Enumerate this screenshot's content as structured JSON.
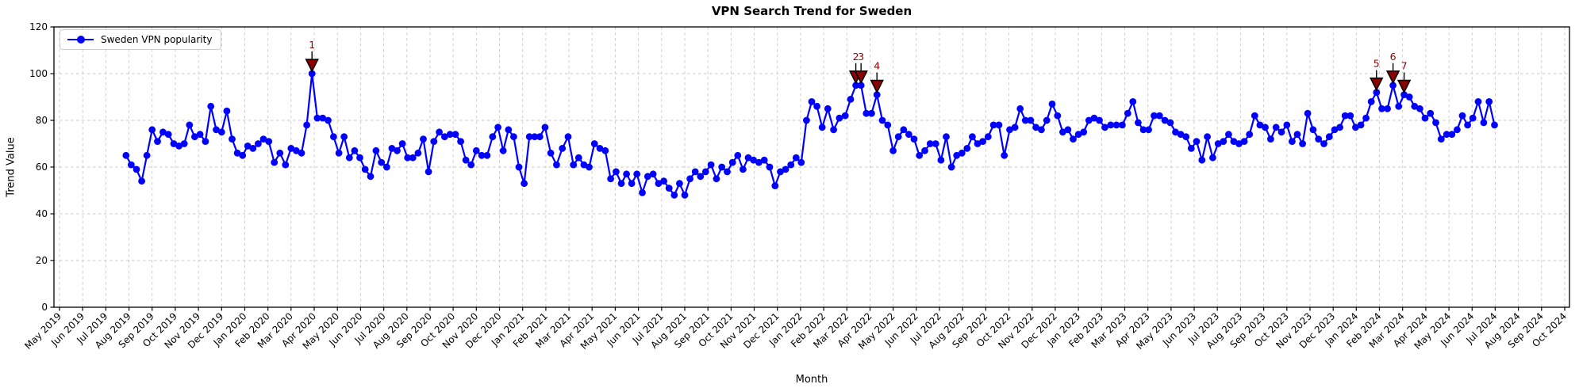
{
  "chart_data": {
    "type": "line",
    "title": "VPN Search Trend for Sweden",
    "xlabel": "Month",
    "ylabel": "Trend Value",
    "ylim": [
      0,
      120
    ],
    "yticks": [
      0,
      20,
      40,
      60,
      80,
      100,
      120
    ],
    "grid": true,
    "legend_position": "upper left",
    "line_color": "#0000ff",
    "grid_color": "#c9c9c9",
    "annotation_color": "#8b0000",
    "x_tick_labels": [
      "May 2019",
      "Jun 2019",
      "Jul 2019",
      "Aug 2019",
      "Sep 2019",
      "Oct 2019",
      "Nov 2019",
      "Dec 2019",
      "Jan 2020",
      "Feb 2020",
      "Mar 2020",
      "Apr 2020",
      "May 2020",
      "Jun 2020",
      "Jul 2020",
      "Aug 2020",
      "Sep 2020",
      "Oct 2020",
      "Nov 2020",
      "Dec 2020",
      "Jan 2021",
      "Feb 2021",
      "Mar 2021",
      "Apr 2021",
      "May 2021",
      "Jun 2021",
      "Jul 2021",
      "Aug 2021",
      "Sep 2021",
      "Oct 2021",
      "Nov 2021",
      "Dec 2021",
      "Jan 2022",
      "Feb 2022",
      "Mar 2022",
      "Apr 2022",
      "May 2022",
      "Jun 2022",
      "Jul 2022",
      "Aug 2022",
      "Sep 2022",
      "Oct 2022",
      "Nov 2022",
      "Dec 2022",
      "Jan 2023",
      "Feb 2023",
      "Mar 2023",
      "Apr 2023",
      "May 2023",
      "Jun 2023",
      "Jul 2023",
      "Aug 2023",
      "Sep 2023",
      "Oct 2023",
      "Nov 2023",
      "Dec 2023",
      "Jan 2024",
      "Feb 2024",
      "Mar 2024",
      "Apr 2024",
      "May 2024",
      "Jun 2024",
      "Jul 2024",
      "Aug 2024",
      "Sep 2024",
      "Oct 2024"
    ],
    "series": [
      {
        "name": "Sweden VPN popularity",
        "color": "#0000ff",
        "start_date": "2019-07-28",
        "interval_days": 7,
        "values": [
          65,
          61,
          59,
          54,
          65,
          76,
          71,
          75,
          74,
          70,
          69,
          70,
          78,
          73,
          74,
          71,
          86,
          76,
          75,
          84,
          72,
          66,
          65,
          69,
          68,
          70,
          72,
          71,
          62,
          66,
          61,
          68,
          67,
          66,
          78,
          100,
          81,
          81,
          80,
          73,
          66,
          73,
          64,
          67,
          64,
          59,
          56,
          67,
          62,
          60,
          68,
          67,
          70,
          64,
          64,
          66,
          72,
          58,
          71,
          75,
          73,
          74,
          74,
          71,
          63,
          61,
          67,
          65,
          65,
          73,
          77,
          67,
          76,
          73,
          60,
          53,
          73,
          73,
          73,
          77,
          66,
          61,
          68,
          73,
          61,
          64,
          61,
          60,
          70,
          68,
          67,
          55,
          58,
          53,
          57,
          53,
          57,
          49,
          56,
          57,
          53,
          54,
          51,
          48,
          53,
          48,
          55,
          58,
          56,
          58,
          61,
          55,
          60,
          58,
          62,
          65,
          59,
          64,
          63,
          62,
          63,
          60,
          52,
          58,
          59,
          61,
          64,
          62,
          80,
          88,
          86,
          77,
          85,
          76,
          81,
          82,
          89,
          95,
          95,
          83,
          83,
          91,
          80,
          78,
          67,
          73,
          76,
          74,
          72,
          65,
          67,
          70,
          70,
          63,
          73,
          60,
          65,
          66,
          68,
          73,
          70,
          71,
          73,
          78,
          78,
          65,
          76,
          77,
          85,
          80,
          80,
          77,
          76,
          80,
          87,
          82,
          75,
          76,
          72,
          74,
          75,
          80,
          81,
          80,
          77,
          78,
          78,
          78,
          83,
          88,
          79,
          76,
          76,
          82,
          82,
          80,
          79,
          75,
          74,
          73,
          68,
          71,
          63,
          73,
          64,
          70,
          71,
          74,
          71,
          70,
          71,
          74,
          82,
          78,
          77,
          72,
          77,
          75,
          78,
          71,
          74,
          70,
          83,
          76,
          72,
          70,
          73,
          76,
          77,
          82,
          82,
          77,
          78,
          81,
          88,
          92,
          85,
          85,
          95,
          86,
          91,
          90,
          86,
          85,
          81,
          83,
          79,
          72,
          74,
          74,
          76,
          82,
          78,
          81,
          88,
          79,
          88,
          78
        ]
      }
    ],
    "annotations": [
      {
        "label": "1",
        "week": 35,
        "value": 100
      },
      {
        "label": "2",
        "week": 137,
        "value": 95
      },
      {
        "label": "3",
        "week": 138,
        "value": 95
      },
      {
        "label": "4",
        "week": 141,
        "value": 91
      },
      {
        "label": "5",
        "week": 235,
        "value": 92
      },
      {
        "label": "6",
        "week": 238,
        "value": 95
      },
      {
        "label": "7",
        "week": 240,
        "value": 91
      }
    ]
  }
}
